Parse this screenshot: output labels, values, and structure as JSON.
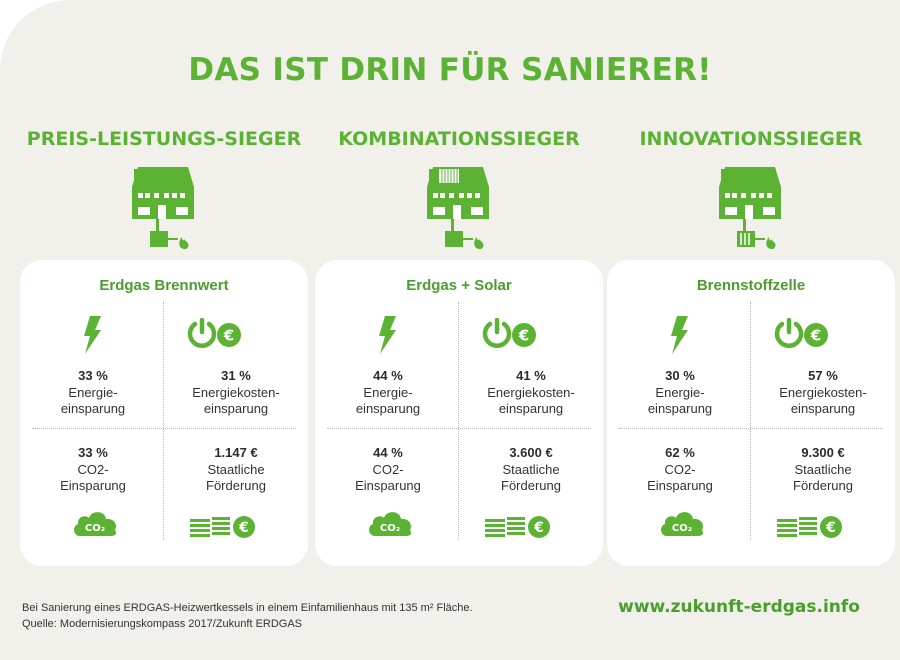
{
  "title": "DAS IST DRIN FÜR SANIERER!",
  "colors": {
    "green": "#5bb233",
    "background": "#f1f0ea",
    "card": "#ffffff",
    "text": "#333333"
  },
  "columns": [
    {
      "heading": "PREIS-LEISTUNGS-SIEGER",
      "system": "Erdgas Brennwert",
      "house_icon": "house-gas-boiler-icon",
      "metrics": [
        {
          "value": "33 %",
          "label": "Energie-\neinsparung",
          "icon": "lightning-icon"
        },
        {
          "value": "31 %",
          "label": "Energiekosten-\neinsparung",
          "icon": "power-euro-icon"
        },
        {
          "value": "33 %",
          "label": "CO2-\nEinsparung",
          "icon": "co2-cloud-icon"
        },
        {
          "value": "1.147 €",
          "label": "Staatliche\nFörderung",
          "icon": "money-stack-euro-icon"
        }
      ]
    },
    {
      "heading": "KOMBINATIONSSIEGER",
      "system": "Erdgas + Solar",
      "house_icon": "house-solar-icon",
      "metrics": [
        {
          "value": "44 %",
          "label": "Energie-\neinsparung",
          "icon": "lightning-icon"
        },
        {
          "value": "41 %",
          "label": "Energiekosten-\neinsparung",
          "icon": "power-euro-icon"
        },
        {
          "value": "44 %",
          "label": "CO2-\nEinsparung",
          "icon": "co2-cloud-icon"
        },
        {
          "value": "3.600 €",
          "label": "Staatliche\nFörderung",
          "icon": "money-stack-euro-icon"
        }
      ]
    },
    {
      "heading": "INNOVATIONSSIEGER",
      "system": "Brennstoffzelle",
      "house_icon": "house-fuel-cell-icon",
      "metrics": [
        {
          "value": "30 %",
          "label": "Energie-\neinsparung",
          "icon": "lightning-icon"
        },
        {
          "value": "57 %",
          "label": "Energiekosten-\neinsparung",
          "icon": "power-euro-icon"
        },
        {
          "value": "62 %",
          "label": "CO2-\nEinsparung",
          "icon": "co2-cloud-icon"
        },
        {
          "value": "9.300 €",
          "label": "Staatliche\nFörderung",
          "icon": "money-stack-euro-icon"
        }
      ]
    }
  ],
  "footer": {
    "note_line1": "Bei Sanierung eines ERDGAS-Heizwertkessels in einem Einfamilienhaus mit 135 m² Fläche.",
    "note_line2": "Quelle: Modernisierungskompass 2017/Zukunft ERDGAS",
    "url": "www.zukunft-erdgas.info"
  }
}
